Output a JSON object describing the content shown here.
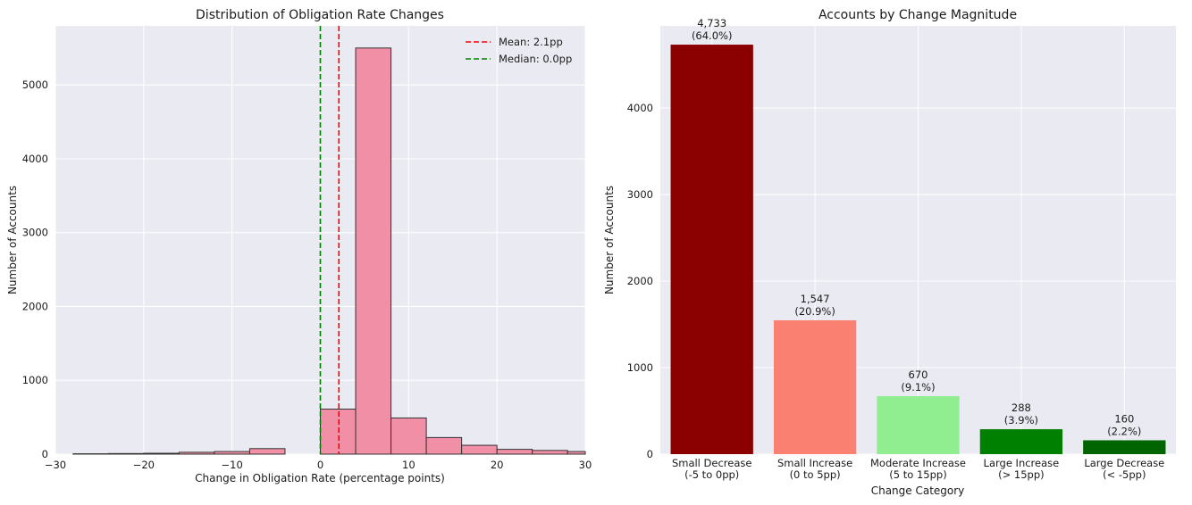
{
  "chart_data": [
    {
      "type": "bar",
      "subtype": "histogram",
      "title": "Distribution of Obligation Rate Changes",
      "xlabel": "Change in Obligation Rate (percentage points)",
      "ylabel": "Number of Accounts",
      "xlim": [
        -30,
        30
      ],
      "ylim": [
        0,
        5800
      ],
      "xticks": [
        -30,
        -20,
        -10,
        0,
        10,
        20,
        30
      ],
      "xtick_labels": [
        "−30",
        "−20",
        "−10",
        "0",
        "10",
        "20",
        "30"
      ],
      "yticks": [
        0,
        1000,
        2000,
        3000,
        4000,
        5000
      ],
      "bin_edges": [
        -28,
        -24,
        -20,
        -16,
        -12,
        -8,
        -4,
        0,
        4,
        8,
        12,
        16,
        20,
        24,
        28,
        32
      ],
      "counts": [
        5,
        8,
        12,
        25,
        35,
        75,
        0,
        610,
        5500,
        490,
        225,
        120,
        65,
        50,
        35
      ],
      "bar_color": "#f08fa5",
      "mean": 2.1,
      "median": 0.0,
      "legend_position": "top-right",
      "legend": [
        {
          "label": "Mean: 2.1pp",
          "color": "#ff0000"
        },
        {
          "label": "Median: 0.0pp",
          "color": "#008000"
        }
      ],
      "grid": true
    },
    {
      "type": "bar",
      "title": "Accounts by Change Magnitude",
      "xlabel": "Change Category",
      "ylabel": "Number of Accounts",
      "ylim": [
        0,
        4950
      ],
      "yticks": [
        0,
        1000,
        2000,
        3000,
        4000
      ],
      "categories": [
        [
          "Small Decrease",
          "(-5 to 0pp)"
        ],
        [
          "Small Increase",
          "(0 to 5pp)"
        ],
        [
          "Moderate Increase",
          "(5 to 15pp)"
        ],
        [
          "Large Increase",
          "(> 15pp)"
        ],
        [
          "Large Decrease",
          "(< -5pp)"
        ]
      ],
      "values": [
        4733,
        1547,
        670,
        288,
        160
      ],
      "value_labels": [
        "4,733",
        "1,547",
        "670",
        "288",
        "160"
      ],
      "pct_labels": [
        "(64.0%)",
        "(20.9%)",
        "(9.1%)",
        "(3.9%)",
        "(2.2%)"
      ],
      "colors": [
        "#8b0000",
        "#fa8072",
        "#90ee90",
        "#008000",
        "#006400"
      ],
      "grid": true
    }
  ]
}
